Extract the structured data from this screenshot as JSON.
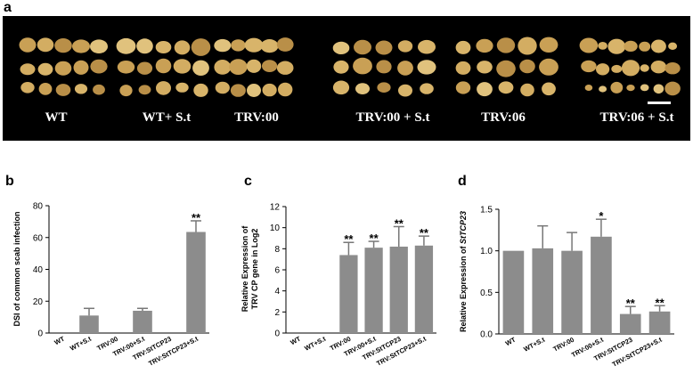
{
  "figure": {
    "panel_a": {
      "letter": "a",
      "labels": [
        "WT",
        "WT+ S.t",
        "TRV:00",
        "TRV:00 + S.t",
        "TRV:06",
        "TRV:06 + S.t"
      ]
    }
  },
  "chart_data": [
    {
      "panel": "b",
      "type": "bar",
      "categories": [
        "WT",
        "WT+S.t",
        "TRV:00",
        "TRV:00+S.t",
        "TRV:StTCP23",
        "TRV:StTCP23+S.t"
      ],
      "values": [
        0,
        11,
        0,
        14,
        0,
        63.5
      ],
      "errors": [
        0,
        4.5,
        0,
        1.5,
        0,
        7
      ],
      "significance": [
        "",
        "",
        "",
        "",
        "",
        "**"
      ],
      "title": "",
      "xlabel": "",
      "ylabel": "DSI of common scab infection",
      "ylim": [
        0,
        80
      ],
      "yticks": [
        0,
        20,
        40,
        60,
        80
      ],
      "bar_color": "#8c8c8c"
    },
    {
      "panel": "c",
      "type": "bar",
      "categories": [
        "WT",
        "WT+S.t",
        "TRV:00",
        "TRV:00+S.t",
        "TRV:StTCP23",
        "TRV:StTCP23+S.t"
      ],
      "values": [
        0,
        0,
        7.4,
        8.1,
        8.2,
        8.3
      ],
      "errors": [
        0,
        0,
        1.2,
        0.6,
        1.9,
        0.9
      ],
      "significance": [
        "",
        "",
        "**",
        "**",
        "**",
        "**"
      ],
      "title": "",
      "xlabel": "",
      "ylabel": "Relative Expression of TRV CP gene in Log2",
      "ylim": [
        0,
        12
      ],
      "yticks": [
        0,
        2,
        4,
        6,
        8,
        10,
        12
      ],
      "bar_color": "#8c8c8c"
    },
    {
      "panel": "d",
      "type": "bar",
      "categories": [
        "WT",
        "WT+S.t",
        "TRV:00",
        "TRV:00+S.t",
        "TRV:StTCP23",
        "TRV:StTCP23+S.t"
      ],
      "values": [
        1.0,
        1.03,
        1.0,
        1.17,
        0.24,
        0.27
      ],
      "errors": [
        0,
        0.27,
        0.22,
        0.21,
        0.09,
        0.07
      ],
      "significance": [
        "",
        "",
        "",
        "*",
        "**",
        "**"
      ],
      "title": "",
      "xlabel": "",
      "ylabel": "Relative Expression of StTCP23",
      "ylim": [
        0,
        1.5
      ],
      "yticks": [
        0.0,
        0.5,
        1.0,
        1.5
      ],
      "bar_color": "#8c8c8c"
    }
  ]
}
